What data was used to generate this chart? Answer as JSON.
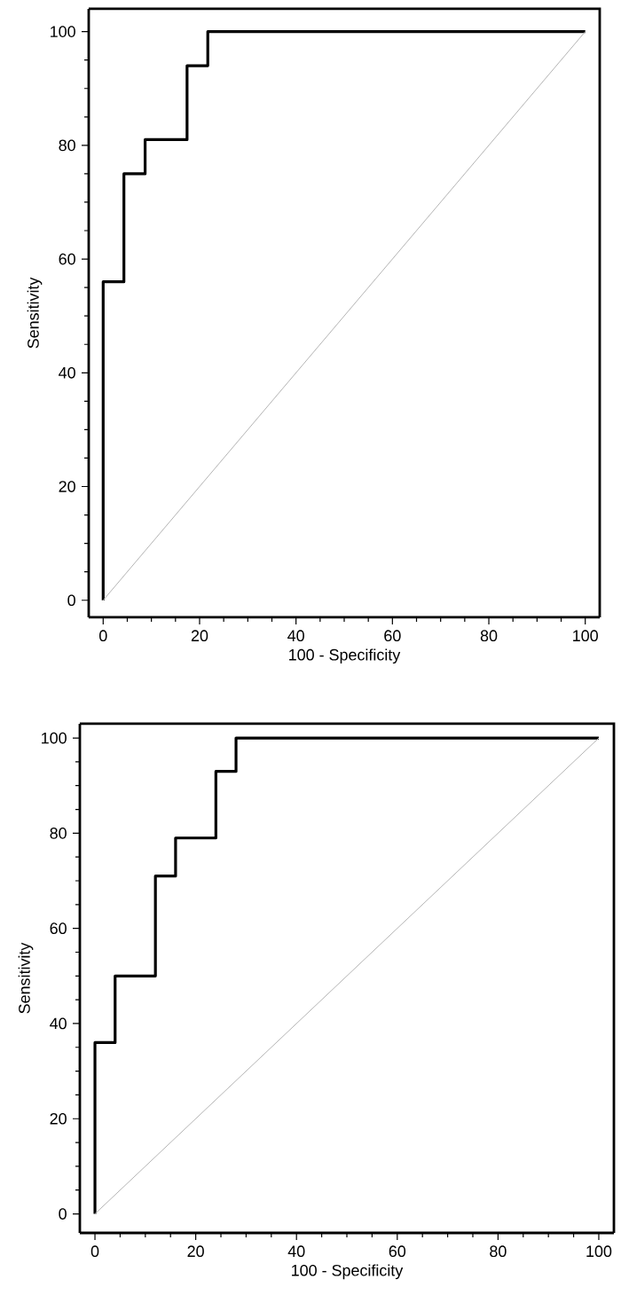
{
  "chart_data": [
    {
      "type": "line",
      "xlabel": "100 - Specificity",
      "ylabel": "Sensitivity",
      "xlim": [
        -3,
        103
      ],
      "ylim": [
        -3,
        104
      ],
      "xticks": [
        0,
        20,
        40,
        60,
        80,
        100
      ],
      "yticks": [
        0,
        20,
        40,
        60,
        80,
        100
      ],
      "line_style": "solid",
      "series": [
        {
          "color": "#000000",
          "x": [
            0,
            0,
            4.3,
            4.3,
            8.7,
            8.7,
            17.4,
            17.4,
            21.7,
            21.7,
            100
          ],
          "values": [
            0,
            56,
            56,
            75,
            75,
            81,
            81,
            94,
            94,
            100,
            100
          ]
        },
        {
          "color": "#b4b4b4",
          "x": [
            0,
            100
          ],
          "values": [
            0,
            100
          ]
        }
      ]
    },
    {
      "type": "line",
      "xlabel": "100 - Specificity",
      "ylabel": "Sensitivity",
      "xlim": [
        -3,
        103
      ],
      "ylim": [
        -4,
        103
      ],
      "xticks": [
        0,
        20,
        40,
        60,
        80,
        100
      ],
      "yticks": [
        0,
        20,
        40,
        60,
        80,
        100
      ],
      "line_style": "solid",
      "series": [
        {
          "color": "#000000",
          "x": [
            0,
            0,
            4,
            4,
            12,
            12,
            16,
            16,
            24,
            24,
            28,
            28,
            100
          ],
          "values": [
            0,
            36,
            36,
            50,
            50,
            71,
            71,
            79,
            79,
            93,
            93,
            100,
            100
          ]
        },
        {
          "color": "#b4b4b4",
          "x": [
            0,
            100
          ],
          "values": [
            0,
            100
          ]
        }
      ]
    }
  ]
}
